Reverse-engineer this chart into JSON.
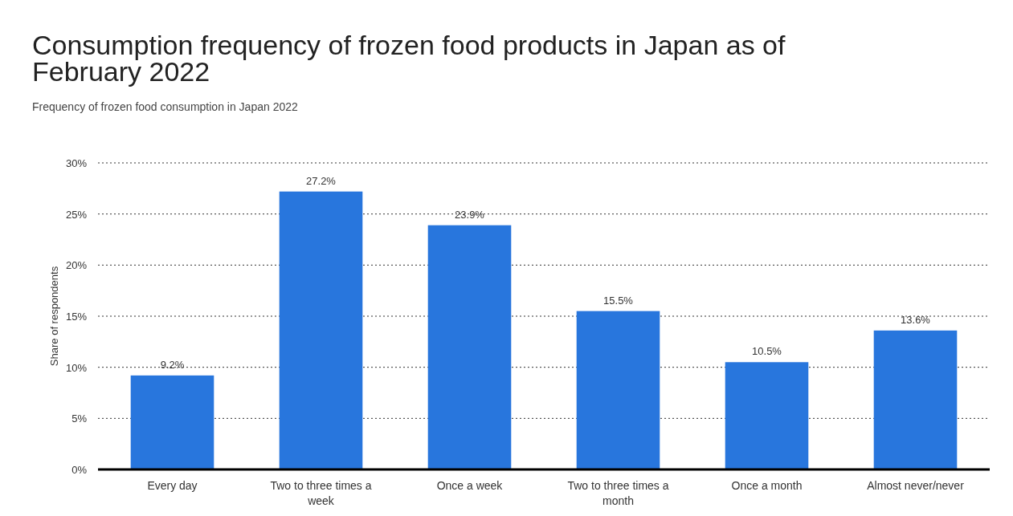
{
  "chart_data": {
    "type": "bar",
    "title": "Consumption frequency of frozen food products in Japan as of February 2022",
    "subtitle": "Frequency of frozen food consumption in Japan 2022",
    "ylabel": "Share of respondents",
    "categories": [
      "Every day",
      "Two to three times a week",
      "Once a week",
      "Two to three times a month",
      "Once a month",
      "Almost never/never"
    ],
    "values": [
      9.2,
      27.2,
      23.9,
      15.5,
      10.5,
      13.6
    ],
    "value_labels": [
      "9.2%",
      "27.2%",
      "23.9%",
      "15.5%",
      "10.5%",
      "13.6%"
    ],
    "color": "#2876dd",
    "ylim": [
      0,
      30
    ],
    "yticks": [
      {
        "value": 0,
        "label": "0%"
      },
      {
        "value": 5,
        "label": "5%"
      },
      {
        "value": 10,
        "label": "10%"
      },
      {
        "value": 15,
        "label": "15%"
      },
      {
        "value": 20,
        "label": "20%"
      },
      {
        "value": 25,
        "label": "25%"
      },
      {
        "value": 30,
        "label": "30%"
      }
    ],
    "grid": "y"
  }
}
